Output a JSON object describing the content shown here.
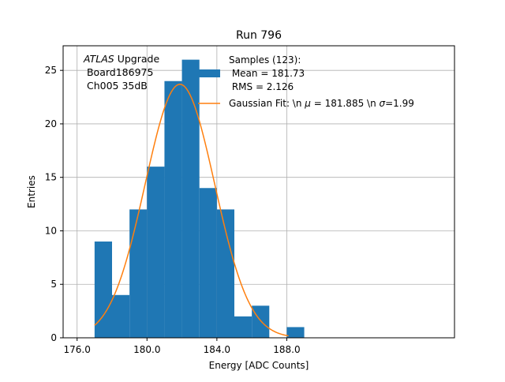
{
  "chart_data": {
    "type": "bar",
    "title": "Run 796",
    "xlabel": "Energy [ADC Counts]",
    "ylabel": "Entries",
    "xlim": [
      175.2,
      197.6
    ],
    "ylim": [
      0,
      27.3
    ],
    "xticks": [
      "176.0",
      "180.0",
      "184.0",
      "188.0"
    ],
    "xtick_values": [
      176,
      180,
      184,
      188
    ],
    "yticks": [
      "0",
      "5",
      "10",
      "15",
      "20",
      "25"
    ],
    "ytick_values": [
      0,
      5,
      10,
      15,
      20,
      25
    ],
    "grid": true,
    "legend_position": "upper-center",
    "colors": {
      "hist": "#1f77b4",
      "fit": "#ff7f0e",
      "grid": "#b0b0b0"
    },
    "histogram": {
      "bin_edges": [
        177,
        178,
        179,
        180,
        181,
        182,
        183,
        184,
        185,
        186,
        187,
        188,
        189
      ],
      "counts": [
        9,
        4,
        12,
        16,
        24,
        26,
        14,
        12,
        2,
        3,
        0,
        1
      ]
    },
    "fit": {
      "mu": 181.885,
      "sigma": 1.99,
      "amplitude": 23.7,
      "x_start": 177.0,
      "x_end": 188.1
    },
    "annotation": {
      "line1_italic": "ATLAS",
      "line1_rest": " Upgrade",
      "line2": " Board186975",
      "line3": " Ch005 35dB"
    },
    "legend": {
      "hist_line1": "Samples (123):",
      "hist_line2": " Mean = 181.73",
      "hist_line3": " RMS = 2.126",
      "fit_pre": "Gaussian Fit: \\n ",
      "fit_mu": "μ",
      "fit_mid": " = 181.885 \\n ",
      "fit_sigma": "σ",
      "fit_post": "=1.99"
    }
  }
}
